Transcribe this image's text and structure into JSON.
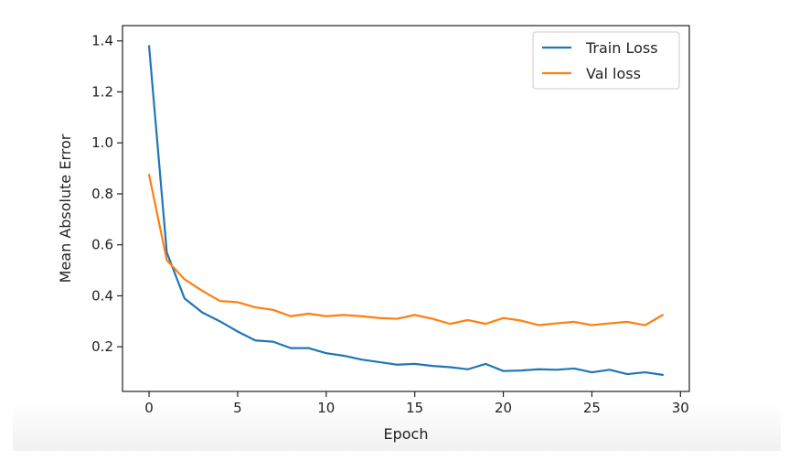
{
  "chart_data": {
    "type": "line",
    "title": "",
    "xlabel": "Epoch",
    "ylabel": "Mean Absolute Error",
    "xlim": [
      -1.5,
      30.5
    ],
    "ylim": [
      0.025,
      1.46
    ],
    "xticks": [
      0,
      5,
      10,
      15,
      20,
      25,
      30
    ],
    "xtick_labels": [
      "0",
      "5",
      "10",
      "15",
      "20",
      "25",
      "30"
    ],
    "yticks": [
      0.2,
      0.4,
      0.6,
      0.8,
      1.0,
      1.2,
      1.4
    ],
    "ytick_labels": [
      "0.2",
      "0.4",
      "0.6",
      "0.8",
      "1.0",
      "1.2",
      "1.4"
    ],
    "grid": false,
    "legend_position": "top-right",
    "x": [
      0,
      1,
      2,
      3,
      4,
      5,
      6,
      7,
      8,
      9,
      10,
      11,
      12,
      13,
      14,
      15,
      16,
      17,
      18,
      19,
      20,
      21,
      22,
      23,
      24,
      25,
      26,
      27,
      28,
      29
    ],
    "series": [
      {
        "name": "Train Loss",
        "color": "#1f77b4",
        "values": [
          1.38,
          0.57,
          0.39,
          0.335,
          0.3,
          0.26,
          0.225,
          0.22,
          0.195,
          0.195,
          0.175,
          0.165,
          0.15,
          0.14,
          0.13,
          0.133,
          0.125,
          0.12,
          0.112,
          0.133,
          0.105,
          0.107,
          0.112,
          0.11,
          0.115,
          0.1,
          0.11,
          0.093,
          0.1,
          0.09
        ]
      },
      {
        "name": "Val loss",
        "color": "#ff7f0e",
        "values": [
          0.875,
          0.54,
          0.465,
          0.42,
          0.38,
          0.375,
          0.355,
          0.345,
          0.32,
          0.33,
          0.32,
          0.325,
          0.32,
          0.313,
          0.31,
          0.325,
          0.31,
          0.29,
          0.305,
          0.29,
          0.313,
          0.303,
          0.285,
          0.292,
          0.298,
          0.285,
          0.292,
          0.298,
          0.285,
          0.325
        ]
      }
    ]
  }
}
